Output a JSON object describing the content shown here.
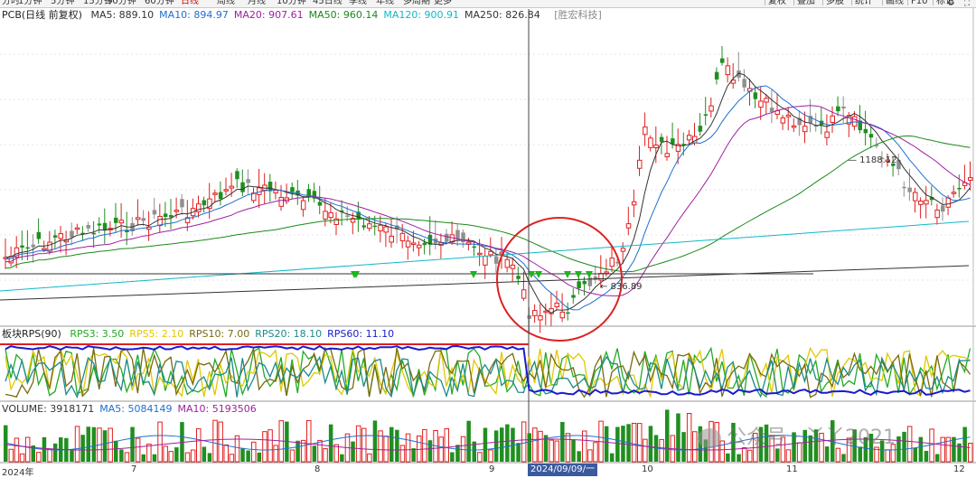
{
  "toolbar": {
    "periods": [
      "分时",
      "1分钟",
      "5分钟",
      "15分钟",
      "30分钟",
      "60分钟",
      "日线",
      "周线",
      "月线",
      "10分钟",
      "45日线",
      "季线",
      "年线",
      "多周期",
      "更多"
    ],
    "active_period": "日线",
    "tools": [
      "复权",
      "叠加",
      "多股",
      "统计",
      "画线",
      "F10",
      "标记"
    ],
    "icons": [
      "settings-icon",
      "fullscreen-icon"
    ]
  },
  "price_legend": {
    "name": "PCB(日线 前复权)",
    "ma": [
      {
        "label": "MA5: 889.10",
        "color": "#333333"
      },
      {
        "label": "MA10: 894.97",
        "color": "#1f6fd0"
      },
      {
        "label": "MA20: 907.61",
        "color": "#a020a0"
      },
      {
        "label": "MA50: 960.14",
        "color": "#1a8a1a"
      },
      {
        "label": "MA120: 900.91",
        "color": "#10b8c8"
      },
      {
        "label": "MA250: 826.84",
        "color": "#333333"
      }
    ],
    "source": "[胜宏科技]"
  },
  "price_annotations": {
    "high_label": "1188.12",
    "low_label": "836.89"
  },
  "rps_legend": {
    "name": "板块RPS(90)",
    "items": [
      {
        "label": "RPS3: 3.50",
        "color": "#22aa22"
      },
      {
        "label": "RPS5: 2.10",
        "color": "#e0c800"
      },
      {
        "label": "RPS10: 7.00",
        "color": "#7a6a10"
      },
      {
        "label": "RPS20: 18.10",
        "color": "#1a8a8a"
      },
      {
        "label": "RPS60: 11.10",
        "color": "#1a1ad0"
      }
    ]
  },
  "volume_legend": {
    "items": [
      {
        "label": "VOLUME: 3918171",
        "color": "#333333"
      },
      {
        "label": "MA5: 5084149",
        "color": "#1f6fd0"
      },
      {
        "label": "MA10: 5193506",
        "color": "#a020a0"
      }
    ]
  },
  "time_axis": {
    "labels": [
      "2024年",
      "7",
      "8",
      "9",
      "10",
      "11",
      "12"
    ],
    "cursor_date": "2024/09/09/一"
  },
  "watermark": "公众号 · 丫丫2021"
}
